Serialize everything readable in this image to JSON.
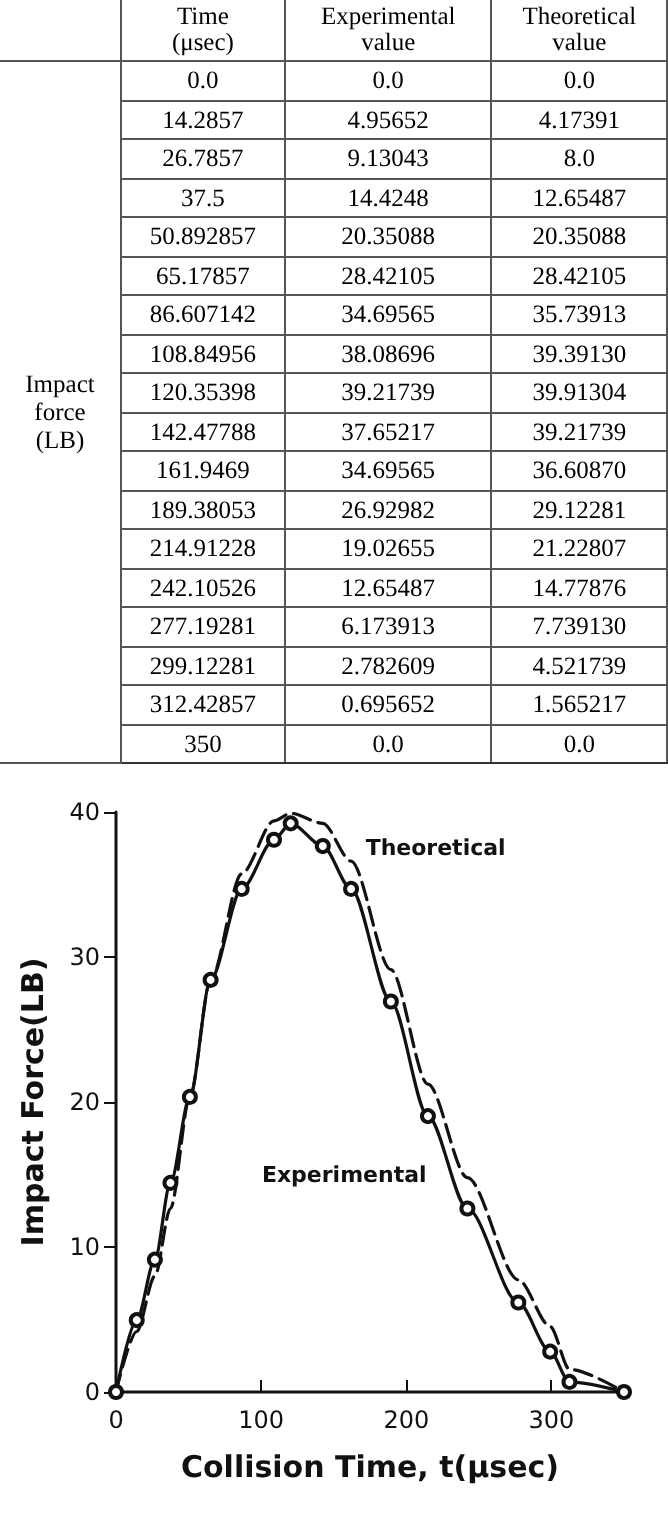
{
  "chart_data": [
    {
      "type": "other",
      "categories": [
        "Time\n(μsec)",
        "Experimental\nvalue",
        "Theoretical\nvalue"
      ],
      "ylabel": "Impact\nforce\n(LB)",
      "cell_labels": [
        [
          "0.0",
          "0.0",
          "0.0"
        ],
        [
          "14.2857",
          "4.95652",
          "4.17391"
        ],
        [
          "26.7857",
          "9.13043",
          "8.0"
        ],
        [
          "37.5",
          "14.4248",
          "12.65487"
        ],
        [
          "50.892857",
          "20.35088",
          "20.35088"
        ],
        [
          "65.17857",
          "28.42105",
          "28.42105"
        ],
        [
          "86.607142",
          "34.69565",
          "35.73913"
        ],
        [
          "108.84956",
          "38.08696",
          "39.39130"
        ],
        [
          "120.35398",
          "39.21739",
          "39.91304"
        ],
        [
          "142.47788",
          "37.65217",
          "39.21739"
        ],
        [
          "161.9469",
          "34.69565",
          "36.60870"
        ],
        [
          "189.38053",
          "26.92982",
          "29.12281"
        ],
        [
          "214.91228",
          "19.02655",
          "21.22807"
        ],
        [
          "242.10526",
          "12.65487",
          "14.77876"
        ],
        [
          "277.19281",
          "6.173913",
          "7.739130"
        ],
        [
          "299.12281",
          "2.782609",
          "4.521739"
        ],
        [
          "312.42857",
          "0.695652",
          "1.565217"
        ],
        [
          "350",
          "0.0",
          "0.0"
        ]
      ]
    },
    {
      "type": "line",
      "xlabel": "Collision Time, t(μsec)",
      "ylabel": "Impact Force(LB)",
      "x": [
        0,
        14.2857,
        26.7857,
        37.5,
        50.892857,
        65.17857,
        86.607142,
        108.84956,
        120.35398,
        142.47788,
        161.9469,
        189.38053,
        214.91228,
        242.10526,
        277.19281,
        299.12281,
        312.42857,
        350
      ],
      "series": [
        {
          "name": "Experimental",
          "color": "#111111",
          "marker": "circle",
          "line_style": "solid",
          "values": [
            0,
            4.95652,
            9.13043,
            14.4248,
            20.35088,
            28.42105,
            34.69565,
            38.08696,
            39.21739,
            37.65217,
            34.69565,
            26.92982,
            19.02655,
            12.65487,
            6.173913,
            2.782609,
            0.695652,
            0
          ]
        },
        {
          "name": "Theoretical",
          "color": "#111111",
          "marker": "none",
          "line_style": "dashed",
          "values": [
            0,
            4.17391,
            8.0,
            12.65487,
            20.35088,
            28.42105,
            35.73913,
            39.3913,
            39.91304,
            39.21739,
            36.6087,
            29.12281,
            21.22807,
            14.77876,
            7.73913,
            4.521739,
            1.565217,
            0
          ]
        }
      ],
      "xlim": [
        0,
        350
      ],
      "xticks": [
        0,
        100,
        200,
        300
      ],
      "ylim": [
        0,
        40
      ],
      "yticks": [
        0,
        10,
        20,
        30,
        40
      ],
      "grid": false,
      "legend": false
    }
  ]
}
